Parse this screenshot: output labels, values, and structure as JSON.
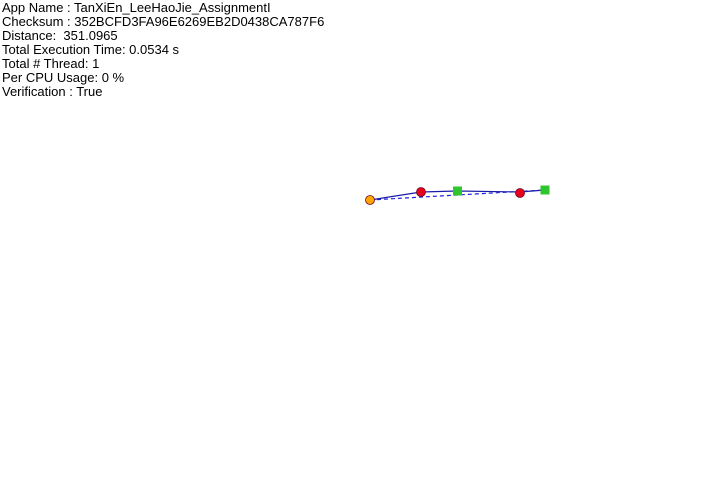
{
  "info": {
    "app_name": "App Name : TanXiEn_LeeHaoJie_AssignmentI",
    "checksum": "Checksum : 352BCFD3FA96E6269EB2D0438CA787F6",
    "distance": "Distance:  351.0965",
    "execution_time": "Total Execution Time: 0.0534 s",
    "threads": "Total # Thread: 1",
    "cpu_usage": "Per CPU Usage: 0 %",
    "verification": "Verification : True"
  },
  "colors": {
    "start": "#ffa500",
    "visited_node": "#e8001c",
    "node_outline": "#6a0a2a",
    "goal": "#2ec52e",
    "path_line": "#1a1aa8",
    "dashed_line": "#2020e0"
  }
}
